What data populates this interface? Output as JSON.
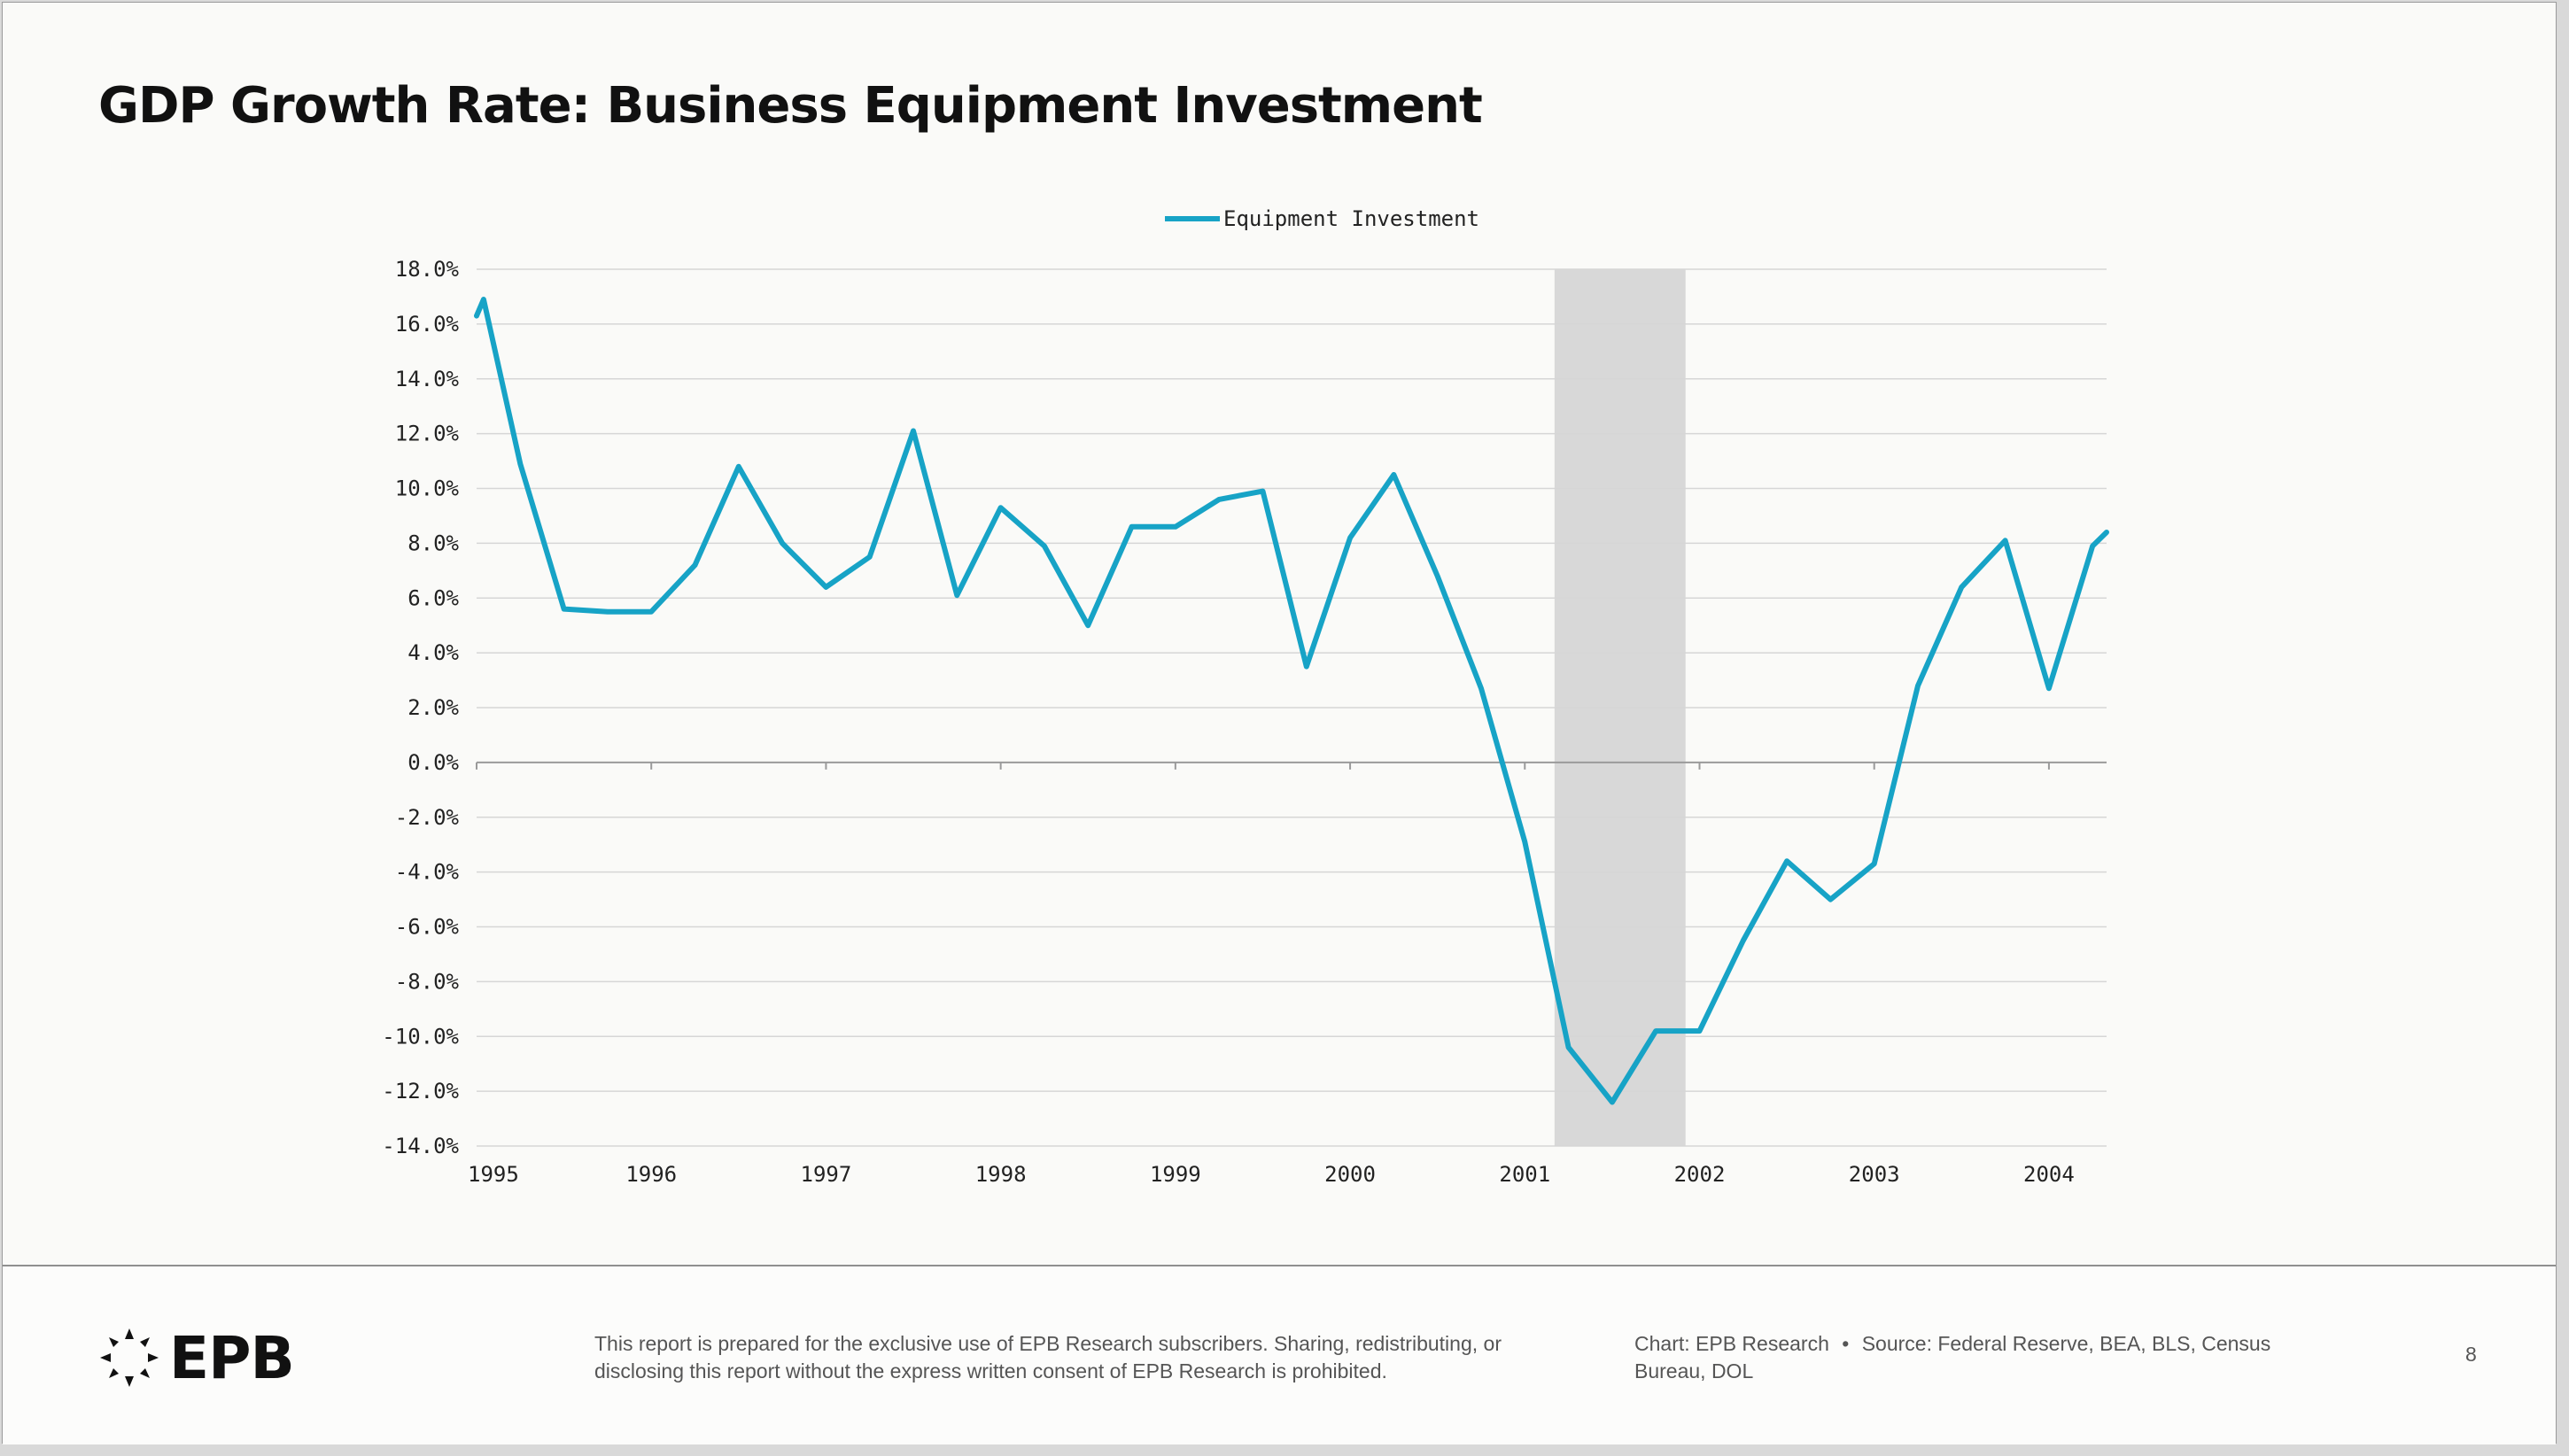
{
  "title": "GDP Growth Rate: Business Equipment Investment",
  "footer": {
    "logo_text": "EPB",
    "disclaimer": "This report is prepared for the exclusive use of EPB Research subscribers. Sharing, redistributing, or disclosing this report without the express written consent of EPB Research is prohibited.",
    "chart_credit": "Chart: EPB Research",
    "separator": "•",
    "source": "Source: Federal Reserve, BEA, BLS, Census Bureau, DOL",
    "page_number": "8"
  },
  "colors": {
    "series": "#17a3c6",
    "recession": "#d8d8d8",
    "grid": "#d6d6d6",
    "zero_line": "#9a9a9a"
  },
  "chart_data": {
    "type": "line",
    "legend": {
      "position": "top-center"
    },
    "grid": true,
    "x_axis": {
      "min": 1995.0,
      "max": 2004.33,
      "ticks": [
        {
          "value": 1995,
          "label": "1995"
        },
        {
          "value": 1996,
          "label": "1996"
        },
        {
          "value": 1997,
          "label": "1997"
        },
        {
          "value": 1998,
          "label": "1998"
        },
        {
          "value": 1999,
          "label": "1999"
        },
        {
          "value": 2000,
          "label": "2000"
        },
        {
          "value": 2001,
          "label": "2001"
        },
        {
          "value": 2002,
          "label": "2002"
        },
        {
          "value": 2003,
          "label": "2003"
        },
        {
          "value": 2004,
          "label": "2004"
        }
      ]
    },
    "y_axis": {
      "min": -14,
      "max": 18,
      "ticks": [
        {
          "value": 18,
          "label": "18.0%"
        },
        {
          "value": 16,
          "label": "16.0%"
        },
        {
          "value": 14,
          "label": "14.0%"
        },
        {
          "value": 12,
          "label": "12.0%"
        },
        {
          "value": 10,
          "label": "10.0%"
        },
        {
          "value": 8,
          "label": "8.0%"
        },
        {
          "value": 6,
          "label": "6.0%"
        },
        {
          "value": 4,
          "label": "4.0%"
        },
        {
          "value": 2,
          "label": "2.0%"
        },
        {
          "value": 0,
          "label": "0.0%"
        },
        {
          "value": -2,
          "label": "-2.0%"
        },
        {
          "value": -4,
          "label": "-4.0%"
        },
        {
          "value": -6,
          "label": "-6.0%"
        },
        {
          "value": -8,
          "label": "-8.0%"
        },
        {
          "value": -10,
          "label": "-10.0%"
        },
        {
          "value": -12,
          "label": "-12.0%"
        },
        {
          "value": -14,
          "label": "-14.0%"
        }
      ]
    },
    "shaded_regions": [
      {
        "from": 2001.17,
        "to": 2001.92
      }
    ],
    "series": [
      {
        "name": "Equipment Investment",
        "points": [
          {
            "x": 1995.0,
            "y": 16.3
          },
          {
            "x": 1995.04,
            "y": 16.9
          },
          {
            "x": 1995.25,
            "y": 10.9
          },
          {
            "x": 1995.5,
            "y": 5.6
          },
          {
            "x": 1995.75,
            "y": 5.5
          },
          {
            "x": 1996.0,
            "y": 5.5
          },
          {
            "x": 1996.25,
            "y": 7.2
          },
          {
            "x": 1996.5,
            "y": 10.8
          },
          {
            "x": 1996.75,
            "y": 8.0
          },
          {
            "x": 1997.0,
            "y": 6.4
          },
          {
            "x": 1997.25,
            "y": 7.5
          },
          {
            "x": 1997.5,
            "y": 12.1
          },
          {
            "x": 1997.75,
            "y": 6.1
          },
          {
            "x": 1998.0,
            "y": 9.3
          },
          {
            "x": 1998.25,
            "y": 7.9
          },
          {
            "x": 1998.5,
            "y": 5.0
          },
          {
            "x": 1998.75,
            "y": 8.6
          },
          {
            "x": 1999.0,
            "y": 8.6
          },
          {
            "x": 1999.25,
            "y": 9.6
          },
          {
            "x": 1999.5,
            "y": 9.9
          },
          {
            "x": 1999.75,
            "y": 3.5
          },
          {
            "x": 2000.0,
            "y": 8.2
          },
          {
            "x": 2000.25,
            "y": 10.5
          },
          {
            "x": 2000.5,
            "y": 6.8
          },
          {
            "x": 2000.75,
            "y": 2.7
          },
          {
            "x": 2001.0,
            "y": -2.9
          },
          {
            "x": 2001.25,
            "y": -10.4
          },
          {
            "x": 2001.5,
            "y": -12.4
          },
          {
            "x": 2001.75,
            "y": -9.8
          },
          {
            "x": 2002.0,
            "y": -9.8
          },
          {
            "x": 2002.25,
            "y": -6.5
          },
          {
            "x": 2002.5,
            "y": -3.6
          },
          {
            "x": 2002.75,
            "y": -5.0
          },
          {
            "x": 2003.0,
            "y": -3.7
          },
          {
            "x": 2003.25,
            "y": 2.8
          },
          {
            "x": 2003.5,
            "y": 6.4
          },
          {
            "x": 2003.75,
            "y": 8.1
          },
          {
            "x": 2004.0,
            "y": 2.7
          },
          {
            "x": 2004.25,
            "y": 7.9
          },
          {
            "x": 2004.33,
            "y": 8.4
          }
        ]
      }
    ]
  }
}
